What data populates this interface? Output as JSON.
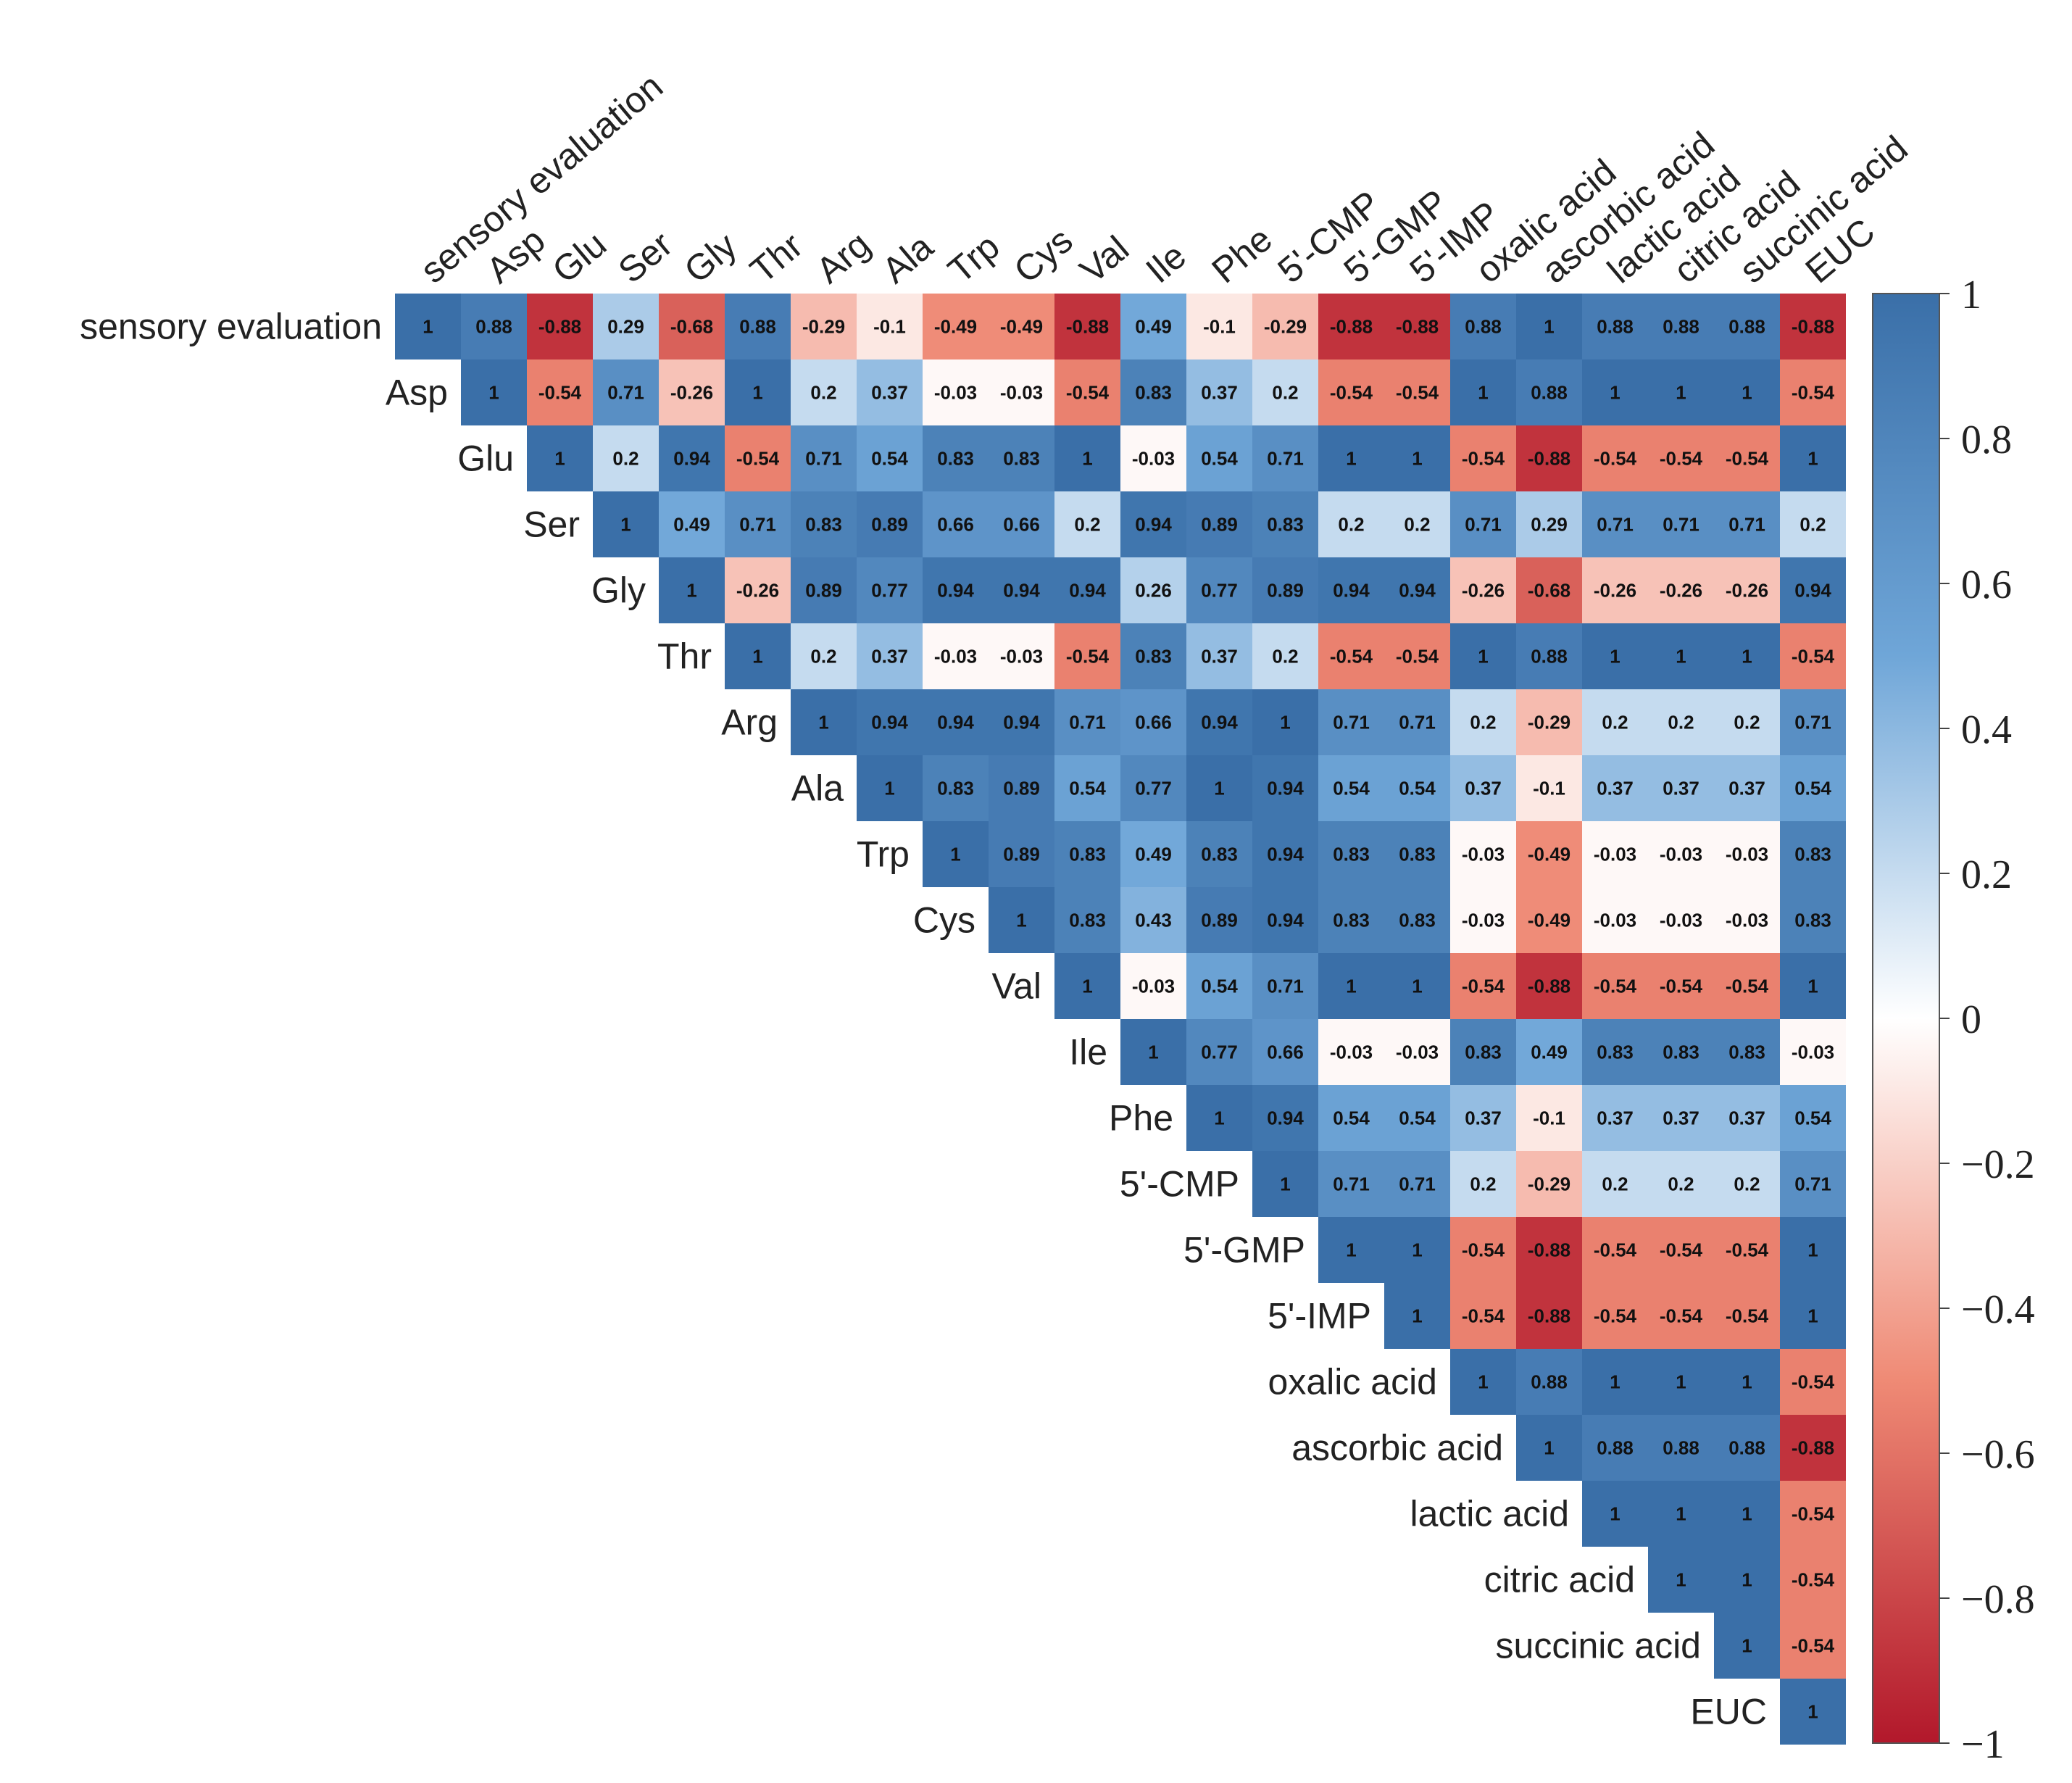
{
  "chart_data": {
    "type": "heatmap",
    "title": "",
    "layout": "upper-triangle correlation matrix",
    "variables": [
      "sensory evaluation",
      "Asp",
      "Glu",
      "Ser",
      "Gly",
      "Thr",
      "Arg",
      "Ala",
      "Trp",
      "Cys",
      "Val",
      "Ile",
      "Phe",
      "5'-CMP",
      "5'-GMP",
      "5'-IMP",
      "oxalic acid",
      "ascorbic acid",
      "lactic acid",
      "citric acid",
      "succinic acid",
      "EUC"
    ],
    "matrix": [
      [
        1,
        0.88,
        -0.88,
        0.29,
        -0.68,
        0.88,
        -0.29,
        -0.1,
        -0.49,
        -0.49,
        -0.88,
        0.49,
        -0.1,
        -0.29,
        -0.88,
        -0.88,
        0.88,
        1,
        0.88,
        0.88,
        0.88,
        -0.88
      ],
      [
        null,
        1,
        -0.54,
        0.71,
        -0.26,
        1,
        0.2,
        0.37,
        -0.03,
        -0.03,
        -0.54,
        0.83,
        0.37,
        0.2,
        -0.54,
        -0.54,
        1,
        0.88,
        1,
        1,
        1,
        -0.54
      ],
      [
        null,
        null,
        1,
        0.2,
        0.94,
        -0.54,
        0.71,
        0.54,
        0.83,
        0.83,
        1,
        -0.03,
        0.54,
        0.71,
        1,
        1,
        -0.54,
        -0.88,
        -0.54,
        -0.54,
        -0.54,
        1
      ],
      [
        null,
        null,
        null,
        1,
        0.49,
        0.71,
        0.83,
        0.89,
        0.66,
        0.66,
        0.2,
        0.94,
        0.89,
        0.83,
        0.2,
        0.2,
        0.71,
        0.29,
        0.71,
        0.71,
        0.71,
        0.2
      ],
      [
        null,
        null,
        null,
        null,
        1,
        -0.26,
        0.89,
        0.77,
        0.94,
        0.94,
        0.94,
        0.26,
        0.77,
        0.89,
        0.94,
        0.94,
        -0.26,
        -0.68,
        -0.26,
        -0.26,
        -0.26,
        0.94
      ],
      [
        null,
        null,
        null,
        null,
        null,
        1,
        0.2,
        0.37,
        -0.03,
        -0.03,
        -0.54,
        0.83,
        0.37,
        0.2,
        -0.54,
        -0.54,
        1,
        0.88,
        1,
        1,
        1,
        -0.54
      ],
      [
        null,
        null,
        null,
        null,
        null,
        null,
        1,
        0.94,
        0.94,
        0.94,
        0.71,
        0.66,
        0.94,
        1,
        0.71,
        0.71,
        0.2,
        -0.29,
        0.2,
        0.2,
        0.2,
        0.71
      ],
      [
        null,
        null,
        null,
        null,
        null,
        null,
        null,
        1,
        0.83,
        0.89,
        0.54,
        0.77,
        1,
        0.94,
        0.54,
        0.54,
        0.37,
        -0.1,
        0.37,
        0.37,
        0.37,
        0.54
      ],
      [
        null,
        null,
        null,
        null,
        null,
        null,
        null,
        null,
        1,
        0.89,
        0.83,
        0.49,
        0.83,
        0.94,
        0.83,
        0.83,
        -0.03,
        -0.49,
        -0.03,
        -0.03,
        -0.03,
        0.83
      ],
      [
        null,
        null,
        null,
        null,
        null,
        null,
        null,
        null,
        null,
        1,
        0.83,
        0.43,
        0.89,
        0.94,
        0.83,
        0.83,
        -0.03,
        -0.49,
        -0.03,
        -0.03,
        -0.03,
        0.83
      ],
      [
        null,
        null,
        null,
        null,
        null,
        null,
        null,
        null,
        null,
        null,
        1,
        -0.03,
        0.54,
        0.71,
        1,
        1,
        -0.54,
        -0.88,
        -0.54,
        -0.54,
        -0.54,
        1
      ],
      [
        null,
        null,
        null,
        null,
        null,
        null,
        null,
        null,
        null,
        null,
        null,
        1,
        0.77,
        0.66,
        -0.03,
        -0.03,
        0.83,
        0.49,
        0.83,
        0.83,
        0.83,
        -0.03
      ],
      [
        null,
        null,
        null,
        null,
        null,
        null,
        null,
        null,
        null,
        null,
        null,
        null,
        1,
        0.94,
        0.54,
        0.54,
        0.37,
        -0.1,
        0.37,
        0.37,
        0.37,
        0.54
      ],
      [
        null,
        null,
        null,
        null,
        null,
        null,
        null,
        null,
        null,
        null,
        null,
        null,
        null,
        1,
        0.71,
        0.71,
        0.2,
        -0.29,
        0.2,
        0.2,
        0.2,
        0.71
      ],
      [
        null,
        null,
        null,
        null,
        null,
        null,
        null,
        null,
        null,
        null,
        null,
        null,
        null,
        null,
        1,
        1,
        -0.54,
        -0.88,
        -0.54,
        -0.54,
        -0.54,
        1
      ],
      [
        null,
        null,
        null,
        null,
        null,
        null,
        null,
        null,
        null,
        null,
        null,
        null,
        null,
        null,
        null,
        1,
        -0.54,
        -0.88,
        -0.54,
        -0.54,
        -0.54,
        1
      ],
      [
        null,
        null,
        null,
        null,
        null,
        null,
        null,
        null,
        null,
        null,
        null,
        null,
        null,
        null,
        null,
        null,
        1,
        0.88,
        1,
        1,
        1,
        -0.54
      ],
      [
        null,
        null,
        null,
        null,
        null,
        null,
        null,
        null,
        null,
        null,
        null,
        null,
        null,
        null,
        null,
        null,
        null,
        1,
        0.88,
        0.88,
        0.88,
        -0.88
      ],
      [
        null,
        null,
        null,
        null,
        null,
        null,
        null,
        null,
        null,
        null,
        null,
        null,
        null,
        null,
        null,
        null,
        null,
        null,
        1,
        1,
        1,
        -0.54
      ],
      [
        null,
        null,
        null,
        null,
        null,
        null,
        null,
        null,
        null,
        null,
        null,
        null,
        null,
        null,
        null,
        null,
        null,
        null,
        null,
        1,
        1,
        -0.54
      ],
      [
        null,
        null,
        null,
        null,
        null,
        null,
        null,
        null,
        null,
        null,
        null,
        null,
        null,
        null,
        null,
        null,
        null,
        null,
        null,
        null,
        1,
        -0.54
      ],
      [
        null,
        null,
        null,
        null,
        null,
        null,
        null,
        null,
        null,
        null,
        null,
        null,
        null,
        null,
        null,
        null,
        null,
        null,
        null,
        null,
        null,
        1
      ]
    ],
    "colorbar": {
      "range": [
        -1,
        1
      ],
      "ticks": [
        1,
        0.8,
        0.6,
        0.4,
        0.2,
        0,
        -0.2,
        -0.4,
        -0.6,
        -0.8,
        -1
      ],
      "tick_labels": [
        "1",
        "0.8",
        "0.6",
        "0.4",
        "0.2",
        "0",
        "−0.2",
        "−0.4",
        "−0.6",
        "−0.8",
        "−1"
      ],
      "colors": {
        "negative": "#b2182b",
        "mid_negative": "#ef8a75",
        "zero": "#ffffff",
        "mid_positive": "#6fa6d8",
        "positive": "#3a6fa8"
      }
    }
  }
}
